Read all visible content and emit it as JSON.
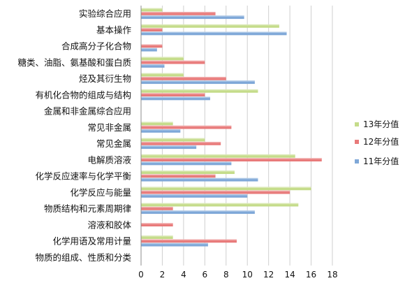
{
  "chart_data": {
    "type": "bar",
    "orientation": "horizontal",
    "categories": [
      "实验综合应用",
      "基本操作",
      "合成高分子化合物",
      "糖类、油脂、氨基酸和蛋白质",
      "烃及其衍生物",
      "有机化合物的组成与结构",
      "金属和非金属综合应用",
      "常见非金属",
      "常见金属",
      "电解质溶液",
      "化学反应速率与化学平衡",
      "化学反应与能量",
      "物质结构和元素周期律",
      "溶液和胶体",
      "化学用语及常用计量",
      "物质的组成、性质和分类"
    ],
    "series": [
      {
        "name": "13年分值",
        "color": "#c5dc8a",
        "values": [
          2,
          13,
          0,
          4,
          4,
          11,
          0,
          3,
          6,
          14.5,
          8.8,
          16,
          14.8,
          0,
          3,
          0
        ]
      },
      {
        "name": "12年分值",
        "color": "#e87a7a",
        "values": [
          7,
          2,
          2,
          6,
          8,
          6,
          0,
          8.5,
          7.5,
          17,
          7,
          14,
          3,
          3,
          9,
          0
        ]
      },
      {
        "name": "11年分值",
        "color": "#7fa8d8",
        "values": [
          9.7,
          13.7,
          1.5,
          2.2,
          10.7,
          6.5,
          0,
          3.7,
          5.2,
          8.5,
          11,
          10,
          10.7,
          0,
          6.3,
          0
        ]
      }
    ],
    "xlim": [
      0,
      18
    ],
    "xticks": [
      0,
      2,
      4,
      6,
      8,
      10,
      12,
      14,
      16,
      18
    ],
    "grid": true,
    "legend_position": "right"
  }
}
